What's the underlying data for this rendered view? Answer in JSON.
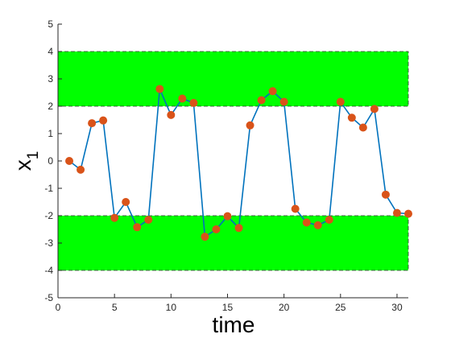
{
  "chart_data": {
    "type": "line",
    "title": "",
    "xlabel": "time",
    "ylabel": {
      "base": "x",
      "subscript": "1"
    },
    "xlim": [
      0,
      31
    ],
    "ylim": [
      -5,
      5
    ],
    "xticks": [
      0,
      5,
      10,
      15,
      20,
      25,
      30
    ],
    "yticks": [
      -5,
      -4,
      -3,
      -2,
      -1,
      0,
      1,
      2,
      3,
      4,
      5
    ],
    "grid": false,
    "legend": "none",
    "bands": [
      {
        "y_low": 2,
        "y_high": 4,
        "x_start": 0,
        "x_end": 31,
        "color": "#00ff00"
      },
      {
        "y_low": -4,
        "y_high": -2,
        "x_start": 0,
        "x_end": 31,
        "color": "#00ff00"
      }
    ],
    "series": [
      {
        "line_color": "#0072bd",
        "marker_color": "#d95319",
        "x": [
          1,
          2,
          3,
          4,
          5,
          6,
          7,
          8,
          9,
          10,
          11,
          12,
          13,
          14,
          15,
          16,
          17,
          18,
          19,
          20,
          21,
          22,
          23,
          24,
          25,
          26,
          27,
          28,
          29,
          30,
          31
        ],
        "y": [
          0.0,
          -0.32,
          1.38,
          1.48,
          -2.08,
          -1.5,
          -2.42,
          -2.15,
          2.63,
          1.68,
          2.28,
          2.12,
          -2.77,
          -2.5,
          -2.02,
          -2.45,
          1.3,
          2.22,
          2.55,
          2.16,
          -1.75,
          -2.25,
          -2.35,
          -2.15,
          2.16,
          1.58,
          1.22,
          1.9,
          -1.23,
          -1.9,
          -1.93
        ]
      }
    ]
  }
}
